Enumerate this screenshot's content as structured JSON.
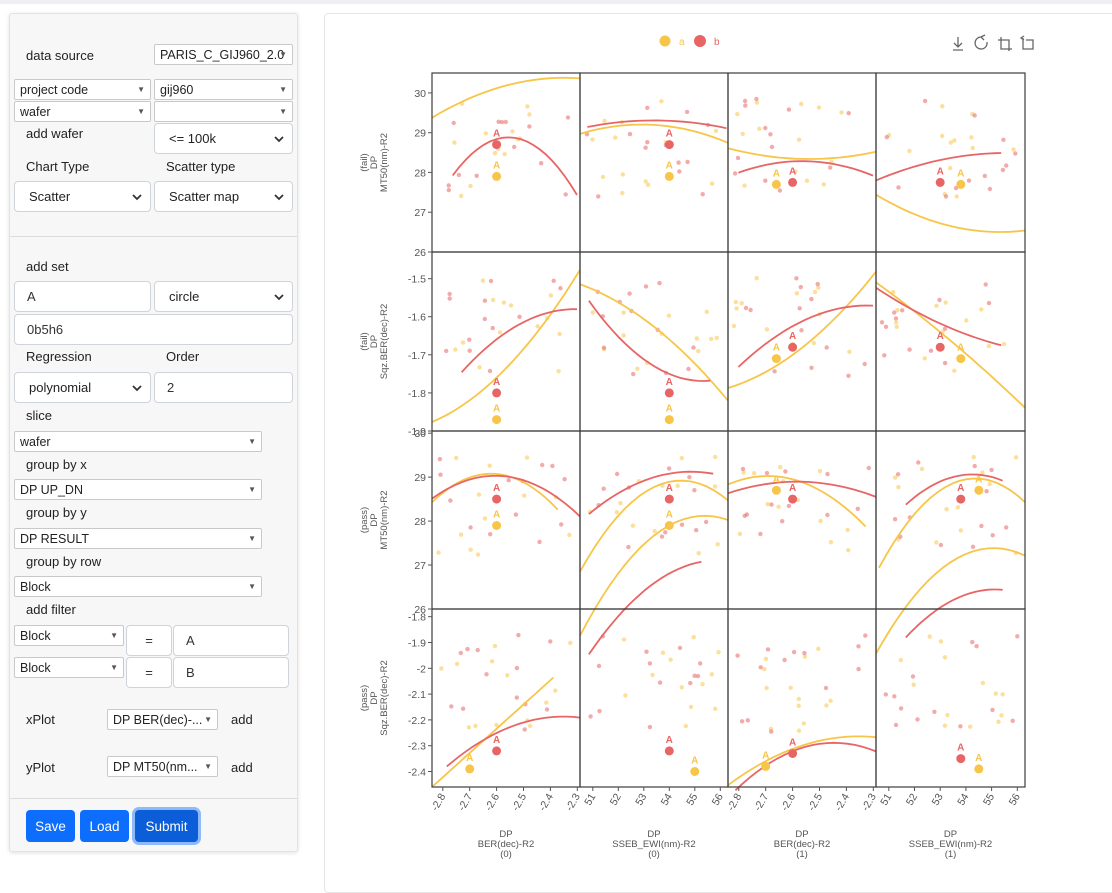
{
  "form": {
    "data_source_label": "data source",
    "data_source_value": "PARIS_C_GIJ960_2.0",
    "project_code_field": "project code",
    "project_code_value": "gij960",
    "wafer_field": "wafer",
    "wafer_value": "",
    "add_wafer_label": "add wafer",
    "wafer_limit": "<= 100k",
    "chart_type_label": "Chart Type",
    "chart_type_value": "Scatter",
    "scatter_type_label": "Scatter type",
    "scatter_type_value": "Scatter map",
    "add_set_label": "add set",
    "set_name": "A",
    "set_shape": "circle",
    "set_color": "0b5h6",
    "regression_label": "Regression",
    "regression_value": "polynomial",
    "order_label": "Order",
    "order_value": "2",
    "slice_label": "slice",
    "slice_value": "wafer",
    "group_by_x_label": "group by x",
    "group_by_x_value": "DP UP_DN",
    "group_by_y_label": "group by y",
    "group_by_y_value": "DP RESULT",
    "group_by_row_label": "group by row",
    "group_by_row_value": "Block",
    "add_filter_label": "add filter",
    "filters": [
      {
        "field": "Block",
        "op": "=",
        "value": "A"
      },
      {
        "field": "Block",
        "op": "=",
        "value": "B"
      }
    ],
    "xplot_label": "xPlot",
    "xplot_value": "DP BER(dec)-...",
    "xplot_add": "add",
    "yplot_label": "yPlot",
    "yplot_value": "DP MT50(nm...",
    "yplot_add": "add"
  },
  "buttons": {
    "save": "Save",
    "load": "Load",
    "submit": "Submit"
  },
  "toolbox": [
    "download-icon",
    "refresh-icon",
    "zoom-icon",
    "zoom-reset-icon"
  ],
  "colors": {
    "a": "#f7c548",
    "b": "#e86565",
    "primary": "#0d6efd"
  },
  "chart_data": {
    "type": "scatter",
    "legend": [
      {
        "name": "a",
        "color": "#f7c548"
      },
      {
        "name": "b",
        "color": "#e86565"
      }
    ],
    "legend_position": "top-center",
    "row_labels": [
      [
        "(fail)",
        "DP",
        "MT50(nm)-R2"
      ],
      [
        "(fail)",
        "DP",
        "Sqz.BER(dec)-R2"
      ],
      [
        "(pass)",
        "DP",
        "MT50(nm)-R2"
      ],
      [
        "(pass)",
        "DP",
        "Sqz.BER(dec)-R2"
      ]
    ],
    "col_labels": [
      [
        "DP",
        "BER(dec)-R2",
        "(0)"
      ],
      [
        "DP",
        "SSEB_EWI(nm)-R2",
        "(0)"
      ],
      [
        "DP",
        "BER(dec)-R2",
        "(1)"
      ],
      [
        "DP",
        "SSEB_EWI(nm)-R2",
        "(1)"
      ]
    ],
    "yticks": [
      [
        "30",
        "29",
        "28",
        "27",
        "26"
      ],
      [
        "-1.5",
        "-1.6",
        "-1.7",
        "-1.8",
        "-1.9"
      ],
      [
        "30",
        "29",
        "28",
        "27",
        "26"
      ],
      [
        "-1.8",
        "-1.9",
        "-2",
        "-2.1",
        "-2.2",
        "-2.3",
        "-2.4"
      ]
    ],
    "xticks": [
      [
        "-2.8",
        "-2.7",
        "-2.6",
        "-2.5",
        "-2.4",
        "-2.3"
      ],
      [
        "51",
        "52",
        "53",
        "54",
        "55",
        "56"
      ],
      [
        "-2.8",
        "-2.7",
        "-2.6",
        "-2.5",
        "-2.4",
        "-2.3"
      ],
      [
        "51",
        "52",
        "53",
        "54",
        "55",
        "56"
      ]
    ],
    "marker_label": "A",
    "grid": false,
    "markers": [
      {
        "row": 0,
        "col": 0,
        "series": "a",
        "x": -2.6,
        "y": 27.9
      },
      {
        "row": 0,
        "col": 0,
        "series": "b",
        "x": -2.6,
        "y": 28.7
      },
      {
        "row": 0,
        "col": 1,
        "series": "a",
        "x": 54,
        "y": 27.9
      },
      {
        "row": 0,
        "col": 1,
        "series": "b",
        "x": 54,
        "y": 28.7
      },
      {
        "row": 0,
        "col": 2,
        "series": "a",
        "x": -2.66,
        "y": 27.7
      },
      {
        "row": 0,
        "col": 2,
        "series": "b",
        "x": -2.6,
        "y": 27.75
      },
      {
        "row": 0,
        "col": 3,
        "series": "a",
        "x": 53.8,
        "y": 27.7
      },
      {
        "row": 0,
        "col": 3,
        "series": "b",
        "x": 53,
        "y": 27.75
      },
      {
        "row": 1,
        "col": 0,
        "series": "a",
        "x": -2.6,
        "y": -1.87
      },
      {
        "row": 1,
        "col": 0,
        "series": "b",
        "x": -2.6,
        "y": -1.8
      },
      {
        "row": 1,
        "col": 1,
        "series": "a",
        "x": 54,
        "y": -1.87
      },
      {
        "row": 1,
        "col": 1,
        "series": "b",
        "x": 54,
        "y": -1.8
      },
      {
        "row": 1,
        "col": 2,
        "series": "a",
        "x": -2.66,
        "y": -1.71
      },
      {
        "row": 1,
        "col": 2,
        "series": "b",
        "x": -2.6,
        "y": -1.68
      },
      {
        "row": 1,
        "col": 3,
        "series": "a",
        "x": 53.8,
        "y": -1.71
      },
      {
        "row": 1,
        "col": 3,
        "series": "b",
        "x": 53,
        "y": -1.68
      },
      {
        "row": 2,
        "col": 0,
        "series": "a",
        "x": -2.6,
        "y": 27.9
      },
      {
        "row": 2,
        "col": 0,
        "series": "b",
        "x": -2.6,
        "y": 28.5
      },
      {
        "row": 2,
        "col": 1,
        "series": "a",
        "x": 54,
        "y": 27.9
      },
      {
        "row": 2,
        "col": 1,
        "series": "b",
        "x": 54,
        "y": 28.5
      },
      {
        "row": 2,
        "col": 2,
        "series": "a",
        "x": -2.66,
        "y": 28.7
      },
      {
        "row": 2,
        "col": 2,
        "series": "b",
        "x": -2.6,
        "y": 28.5
      },
      {
        "row": 2,
        "col": 3,
        "series": "a",
        "x": 54.5,
        "y": 28.7
      },
      {
        "row": 2,
        "col": 3,
        "series": "b",
        "x": 53.8,
        "y": 28.5
      },
      {
        "row": 3,
        "col": 0,
        "series": "a",
        "x": -2.7,
        "y": -2.39
      },
      {
        "row": 3,
        "col": 0,
        "series": "b",
        "x": -2.6,
        "y": -2.32
      },
      {
        "row": 3,
        "col": 1,
        "series": "a",
        "x": 55,
        "y": -2.4
      },
      {
        "row": 3,
        "col": 1,
        "series": "b",
        "x": 54,
        "y": -2.32
      },
      {
        "row": 3,
        "col": 2,
        "series": "a",
        "x": -2.7,
        "y": -2.38
      },
      {
        "row": 3,
        "col": 2,
        "series": "b",
        "x": -2.6,
        "y": -2.33
      },
      {
        "row": 3,
        "col": 3,
        "series": "a",
        "x": 54.5,
        "y": -2.39
      },
      {
        "row": 3,
        "col": 3,
        "series": "b",
        "x": 53.8,
        "y": -2.35
      }
    ]
  }
}
